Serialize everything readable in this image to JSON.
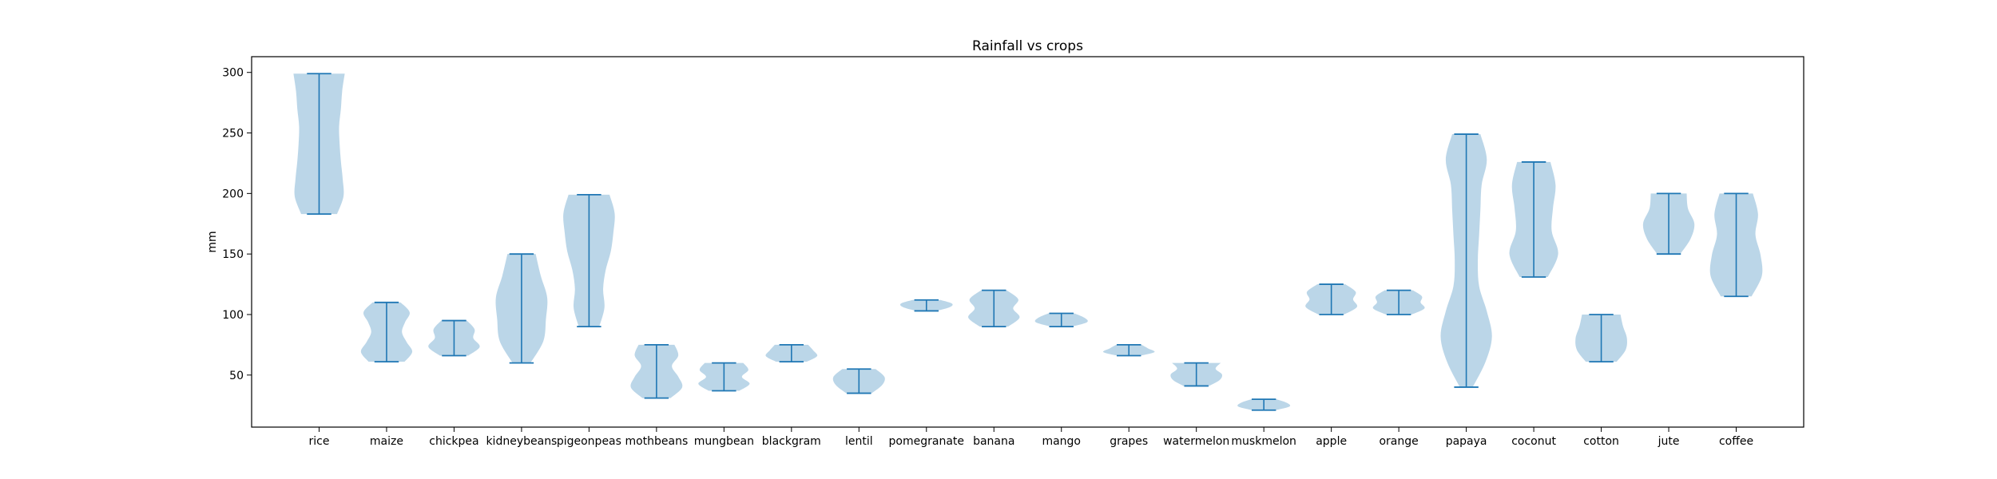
{
  "chart_data": {
    "type": "violin",
    "title": "Rainfall vs crops",
    "xlabel": "",
    "ylabel": "mm",
    "ylim": [
      7,
      313
    ],
    "yticks": [
      50,
      100,
      150,
      200,
      250,
      300
    ],
    "grid": false,
    "colors": {
      "body": "#1f77b4",
      "line": "#1f77b4",
      "axis": "#000000"
    },
    "categories": [
      "rice",
      "maize",
      "chickpea",
      "kidneybeans",
      "pigeonpeas",
      "mothbeans",
      "mungbean",
      "blackgram",
      "lentil",
      "pomegranate",
      "banana",
      "mango",
      "grapes",
      "watermelon",
      "muskmelon",
      "apple",
      "orange",
      "papaya",
      "coconut",
      "cotton",
      "jute",
      "coffee"
    ],
    "series": [
      {
        "min": 183,
        "max": 299,
        "w": [
          0.7,
          0.95,
          0.92,
          0.85,
          0.8,
          0.78,
          0.85,
          0.9,
          1.0
        ]
      },
      {
        "min": 61,
        "max": 110,
        "w": [
          0.7,
          1.0,
          0.78,
          0.6,
          0.72,
          0.9,
          0.55
        ]
      },
      {
        "min": 66,
        "max": 95,
        "w": [
          0.55,
          1.0,
          0.75,
          0.8,
          0.5
        ]
      },
      {
        "min": 60,
        "max": 150,
        "w": [
          0.35,
          0.85,
          0.95,
          1.0,
          0.75,
          0.55
        ]
      },
      {
        "min": 90,
        "max": 199,
        "w": [
          0.4,
          0.6,
          0.55,
          0.65,
          0.85,
          0.95,
          1.0,
          0.8
        ]
      },
      {
        "min": 31,
        "max": 75,
        "w": [
          0.55,
          1.0,
          0.85,
          0.6,
          0.85,
          0.7
        ]
      },
      {
        "min": 37,
        "max": 60,
        "w": [
          0.6,
          1.0,
          0.7,
          0.95,
          0.75
        ]
      },
      {
        "min": 61,
        "max": 75,
        "w": [
          0.6,
          1.0,
          0.85,
          0.65
        ]
      },
      {
        "min": 35,
        "max": 55,
        "w": [
          0.5,
          0.9,
          1.0,
          0.65
        ]
      },
      {
        "min": 103,
        "max": 112,
        "w": [
          0.4,
          0.9,
          1.0,
          0.55
        ]
      },
      {
        "min": 90,
        "max": 120,
        "w": [
          0.55,
          1.0,
          0.75,
          0.95,
          0.5
        ]
      },
      {
        "min": 90,
        "max": 101,
        "w": [
          0.4,
          1.0,
          0.9,
          0.5
        ]
      },
      {
        "min": 66,
        "max": 75,
        "w": [
          0.45,
          1.0,
          0.75,
          0.5
        ]
      },
      {
        "min": 41,
        "max": 60,
        "w": [
          0.5,
          0.9,
          1.0,
          0.75,
          0.95
        ]
      },
      {
        "min": 21,
        "max": 30,
        "w": [
          0.45,
          1.0,
          0.9,
          0.5
        ]
      },
      {
        "min": 100,
        "max": 125,
        "w": [
          0.5,
          1.0,
          0.85,
          0.95,
          0.55
        ]
      },
      {
        "min": 100,
        "max": 120,
        "w": [
          0.5,
          1.0,
          0.85,
          0.9,
          0.55
        ]
      },
      {
        "min": 40,
        "max": 249,
        "w": [
          0.25,
          0.75,
          1.0,
          0.8,
          0.5,
          0.45,
          0.5,
          0.55,
          0.6,
          0.8,
          0.55
        ]
      },
      {
        "min": 131,
        "max": 226,
        "w": [
          0.55,
          0.95,
          0.7,
          0.75,
          0.85,
          0.65
        ]
      },
      {
        "min": 61,
        "max": 100,
        "w": [
          0.6,
          0.95,
          1.0,
          0.85,
          0.75
        ]
      },
      {
        "min": 150,
        "max": 200,
        "w": [
          0.45,
          0.85,
          1.0,
          0.75,
          0.7
        ]
      },
      {
        "min": 115,
        "max": 200,
        "w": [
          0.6,
          1.0,
          0.95,
          0.75,
          0.85,
          0.65
        ]
      }
    ]
  }
}
